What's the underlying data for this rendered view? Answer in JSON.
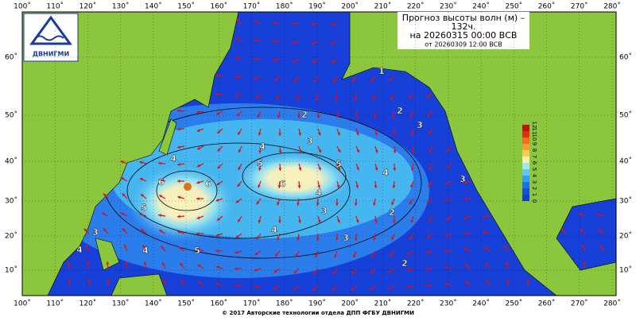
{
  "logo": {
    "text": "ДВНИГМИ"
  },
  "title": {
    "lines": [
      "Прогноз высоты волн (м) –",
      "132ч.",
      "на 20260315 00:00 ВСВ",
      "от 20260309 12:00 ВСВ"
    ]
  },
  "axes": {
    "lon_labels": [
      "100˚",
      "110˚",
      "120˚",
      "130˚",
      "140˚",
      "150˚",
      "160˚",
      "170˚",
      "180˚",
      "190˚",
      "200˚",
      "210˚",
      "220˚",
      "230˚",
      "240˚",
      "250˚",
      "260˚",
      "270˚",
      "280˚"
    ],
    "lat_labels": [
      "60˚",
      "50˚",
      "40˚",
      "30˚",
      "20˚",
      "10˚"
    ]
  },
  "colorbar": {
    "labels": [
      "12",
      "11",
      "10",
      "9",
      "8",
      "7",
      "6",
      "5",
      "4",
      "3",
      "2",
      "1",
      "0"
    ]
  },
  "contour_labels": [
    "1",
    "2",
    "2",
    "3",
    "3",
    "4",
    "5",
    "4",
    "6",
    "6",
    "5",
    "6",
    "4",
    "3",
    "4",
    "5",
    "2",
    "4",
    "3",
    "3",
    "3",
    "4",
    "4",
    "5",
    "2"
  ],
  "footer": "© 2017 Авторские технологии отдела ДПП ФГБУ ДВНИГМИ"
}
